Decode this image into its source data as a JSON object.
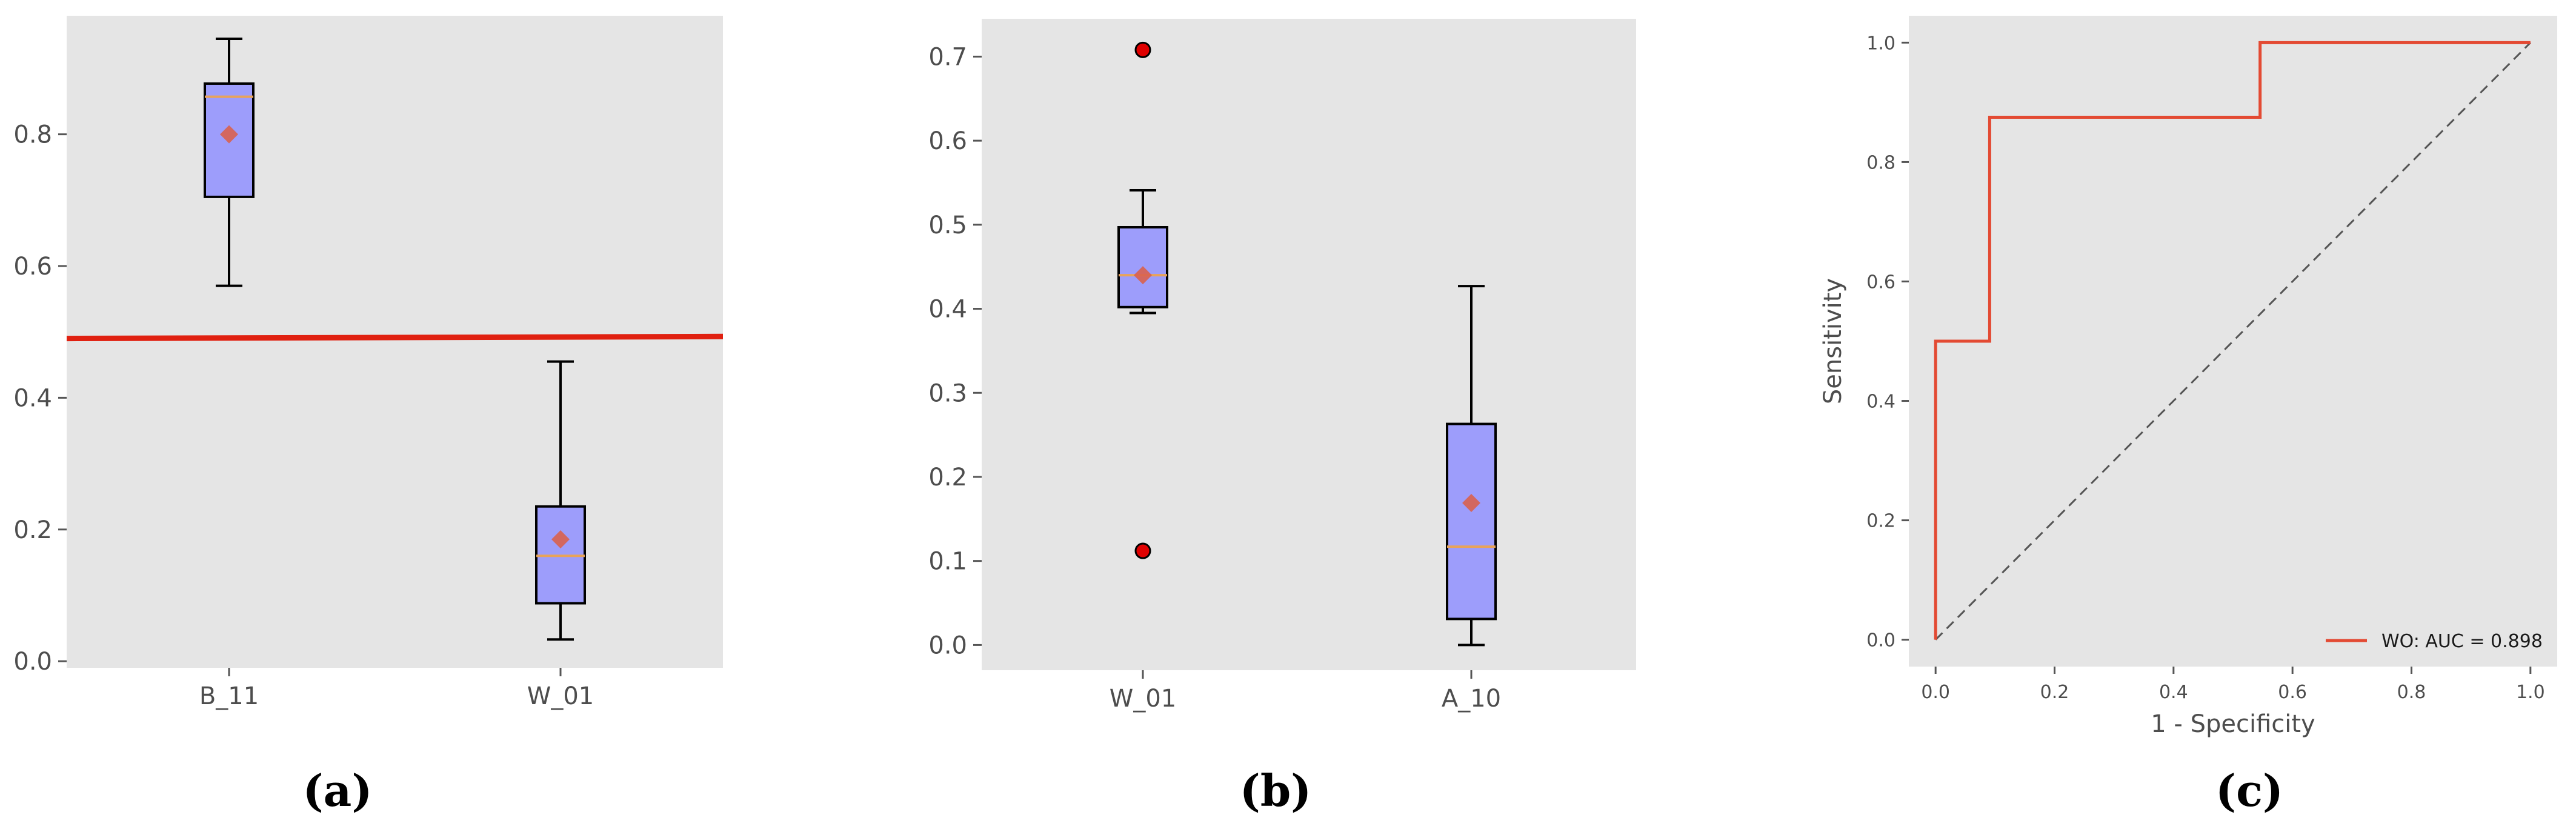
{
  "colors": {
    "plot_background": "#e5e5e5",
    "box_fill": "#9d9dfb",
    "median": "#e8a35a",
    "mean_marker": "#d9624e",
    "outlier": "#e00000",
    "threshold_line": "#e02010",
    "roc_curve": "#e34a33",
    "diagonal": "#555555"
  },
  "chart_data": [
    {
      "type": "box",
      "panel_label": "(a)",
      "title": "",
      "xlabel": "",
      "ylabel": "",
      "ylim": [
        -0.01,
        0.98
      ],
      "yticks": [
        0.0,
        0.2,
        0.4,
        0.6,
        0.8
      ],
      "ytick_labels": [
        "0.0",
        "0.2",
        "0.4",
        "0.6",
        "0.8"
      ],
      "categories": [
        "B_11",
        "W_01"
      ],
      "boxes": [
        {
          "whisker_low": 0.57,
          "q1": 0.705,
          "median": 0.857,
          "q3": 0.877,
          "whisker_high": 0.945,
          "mean": 0.8,
          "outliers": []
        },
        {
          "whisker_low": 0.033,
          "q1": 0.088,
          "median": 0.16,
          "q3": 0.235,
          "whisker_high": 0.455,
          "mean": 0.185,
          "outliers": []
        }
      ],
      "threshold": {
        "start": 0.49,
        "end": 0.493
      },
      "grid": false
    },
    {
      "type": "box",
      "panel_label": "(b)",
      "title": "",
      "xlabel": "",
      "ylabel": "",
      "ylim": [
        -0.03,
        0.745
      ],
      "yticks": [
        0.0,
        0.1,
        0.2,
        0.3,
        0.4,
        0.5,
        0.6,
        0.7
      ],
      "ytick_labels": [
        "0.0",
        "0.1",
        "0.2",
        "0.3",
        "0.4",
        "0.5",
        "0.6",
        "0.7"
      ],
      "categories": [
        "W_01",
        "A_10"
      ],
      "boxes": [
        {
          "whisker_low": 0.395,
          "q1": 0.402,
          "median": 0.44,
          "q3": 0.497,
          "whisker_high": 0.541,
          "mean": 0.44,
          "outliers": [
            0.708,
            0.112
          ]
        },
        {
          "whisker_low": 0.0,
          "q1": 0.031,
          "median": 0.117,
          "q3": 0.263,
          "whisker_high": 0.427,
          "mean": 0.169,
          "outliers": []
        }
      ],
      "grid": false
    },
    {
      "type": "line",
      "panel_label": "(c)",
      "title": "",
      "xlabel": "1 - Specificity",
      "ylabel": "Sensitivity",
      "xlim": [
        -0.045,
        1.045
      ],
      "ylim": [
        -0.045,
        1.045
      ],
      "xticks": [
        0.0,
        0.2,
        0.4,
        0.6,
        0.8,
        1.0
      ],
      "xtick_labels": [
        "0.0",
        "0.2",
        "0.4",
        "0.6",
        "0.8",
        "1.0"
      ],
      "yticks": [
        0.0,
        0.2,
        0.4,
        0.6,
        0.8,
        1.0
      ],
      "ytick_labels": [
        "0.0",
        "0.2",
        "0.4",
        "0.6",
        "0.8",
        "1.0"
      ],
      "series": [
        {
          "name": "WO: AUC = 0.898",
          "x": [
            0.0,
            0.0,
            0.0909,
            0.0909,
            0.5455,
            0.5455,
            1.0
          ],
          "y": [
            0.0,
            0.5,
            0.5,
            0.875,
            0.875,
            1.0,
            1.0
          ]
        }
      ],
      "reference_line": {
        "x": [
          0.0,
          1.0
        ],
        "y": [
          0.0,
          1.0
        ]
      },
      "legend": {
        "placement": "lower-right",
        "entries": [
          "WO: AUC = 0.898"
        ]
      },
      "grid": false
    }
  ]
}
